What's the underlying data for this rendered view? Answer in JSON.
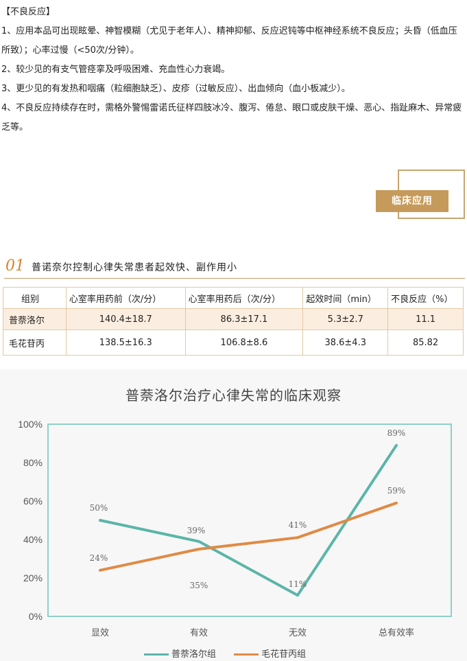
{
  "adverse": {
    "heading": "【不良反应】",
    "items": [
      "1、应用本品可出现眩晕、神智模糊（尤见于老年人）、精神抑郁、反应迟钝等中枢神经系统不良反应；头昏（低血压所致）；心率过慢（<50次/分钟）。",
      "2、较少见的有支气管痉挛及呼吸困难、充血性心力衰竭。",
      "3、更少见的有发热和咽痛（粒细胞缺乏）、皮疹（过敏反应）、出血倾向（血小板减少）。",
      "4、不良反应持续存在时，需格外警惕雷诺氏征样四肢冰冷、腹泻、倦怠、眼口或皮肤干燥、恶心、指趾麻木、异常疲乏等。"
    ]
  },
  "section_label": "临床应用",
  "section": {
    "number": "01",
    "title": "普诺奈尔控制心律失常患者起效快、副作用小"
  },
  "table": {
    "headers": [
      "组别",
      "心室率用药前（次/分）",
      "心室率用药后（次/分）",
      "起效时间（min）",
      "不良反应（%）"
    ],
    "rows": [
      [
        "普萘洛尔",
        "140.4±18.7",
        "86.3±17.1",
        "5.3±2.7",
        "11.1"
      ],
      [
        "毛花苷丙",
        "138.5±16.3",
        "106.8±8.6",
        "38.6±4.3",
        "85.82"
      ]
    ]
  },
  "chart_data": {
    "type": "line",
    "title": "普萘洛尔治疗心律失常的临床观察",
    "categories": [
      "显效",
      "有效",
      "无效",
      "总有效率"
    ],
    "ylim": [
      0,
      100
    ],
    "yticks": [
      "0%",
      "20%",
      "40%",
      "60%",
      "80%",
      "100%"
    ],
    "series": [
      {
        "name": "普萘洛尔组",
        "values": [
          50,
          39,
          11,
          89
        ],
        "labels": [
          "50%",
          "39%",
          "11%",
          "89%"
        ],
        "color": "#5bb5a8"
      },
      {
        "name": "毛花苷丙组",
        "values": [
          24,
          35,
          41,
          59
        ],
        "labels": [
          "24%",
          "35%",
          "41%",
          "59%"
        ],
        "color": "#e08a45"
      }
    ],
    "legend": "bottom"
  }
}
